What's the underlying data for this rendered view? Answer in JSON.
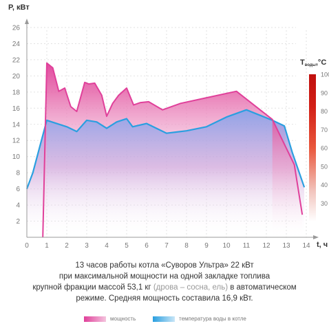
{
  "chart_data": {
    "type": "area",
    "y_axis_label": "P, кВт",
    "x_axis_label": "t, ч",
    "temp_axis_label_main": "T",
    "temp_axis_label_sub": "воды",
    "temp_axis_label_unit": ",°C",
    "xlim": [
      0,
      14
    ],
    "ylim": [
      0,
      26
    ],
    "x_ticks": [
      "0",
      "1",
      "2",
      "3",
      "4",
      "5",
      "6",
      "7",
      "8",
      "9",
      "10",
      "11",
      "12",
      "13",
      "14"
    ],
    "y_ticks": [
      "2",
      "4",
      "6",
      "8",
      "10",
      "12",
      "14",
      "16",
      "18",
      "20",
      "22",
      "24",
      "26"
    ],
    "temp_ticks": [
      "30",
      "40",
      "50",
      "60",
      "70",
      "80",
      "90",
      "100"
    ],
    "temp_range": [
      20,
      100
    ],
    "temp_bar_colors": [
      "#ffffff",
      "#f2c6bf",
      "#e9573c",
      "#d21f16",
      "#c0100e"
    ],
    "grid": true,
    "series": [
      {
        "name": "мощность",
        "color": "#e0409a",
        "x": [
          0.8,
          1.0,
          1.3,
          1.6,
          1.9,
          2.2,
          2.5,
          2.9,
          3.1,
          3.4,
          3.75,
          4.0,
          4.3,
          4.6,
          5.0,
          5.35,
          5.7,
          6.1,
          6.8,
          7.7,
          9.0,
          10.5,
          12.3,
          13.4,
          13.8
        ],
        "y": [
          0.0,
          21.6,
          21.0,
          18.1,
          18.5,
          16.2,
          15.6,
          19.2,
          19.0,
          19.1,
          17.6,
          15.0,
          16.6,
          17.6,
          18.5,
          16.4,
          16.7,
          16.8,
          15.8,
          16.6,
          17.3,
          18.1,
          14.6,
          9.0,
          2.8
        ]
      },
      {
        "name": "температура воды в котле",
        "color": "#2a9fe0",
        "x": [
          0,
          0.3,
          1.0,
          2.0,
          2.5,
          3.0,
          3.5,
          4.0,
          4.5,
          5.0,
          5.3,
          6.0,
          7.0,
          8.0,
          9.0,
          10.0,
          11.0,
          11.6,
          12.3,
          12.9,
          13.3,
          13.9
        ],
        "y": [
          6.0,
          8.0,
          14.5,
          13.7,
          13.1,
          14.5,
          14.3,
          13.5,
          14.3,
          14.7,
          13.7,
          14.1,
          12.9,
          13.2,
          13.7,
          14.9,
          15.8,
          15.2,
          14.5,
          13.8,
          10.5,
          6.2
        ]
      }
    ]
  },
  "caption": {
    "line1": "13 часов работы котла «Суворов Ультра» 22 кВт",
    "line2": "при максимальной мощности на одной закладке топлива",
    "line3_a": "крупной фракции массой 53,1 кг ",
    "line3_note": "(дрова – сосна, ель)",
    "line3_b": " в автоматическом",
    "line4": "режиме. Средняя мощность составила 16,9 кВт."
  },
  "legend": {
    "power_label": "мощность",
    "temp_label": "температура воды в котле",
    "power_color": "#e0409a",
    "temp_color": "#2a9fe0"
  }
}
